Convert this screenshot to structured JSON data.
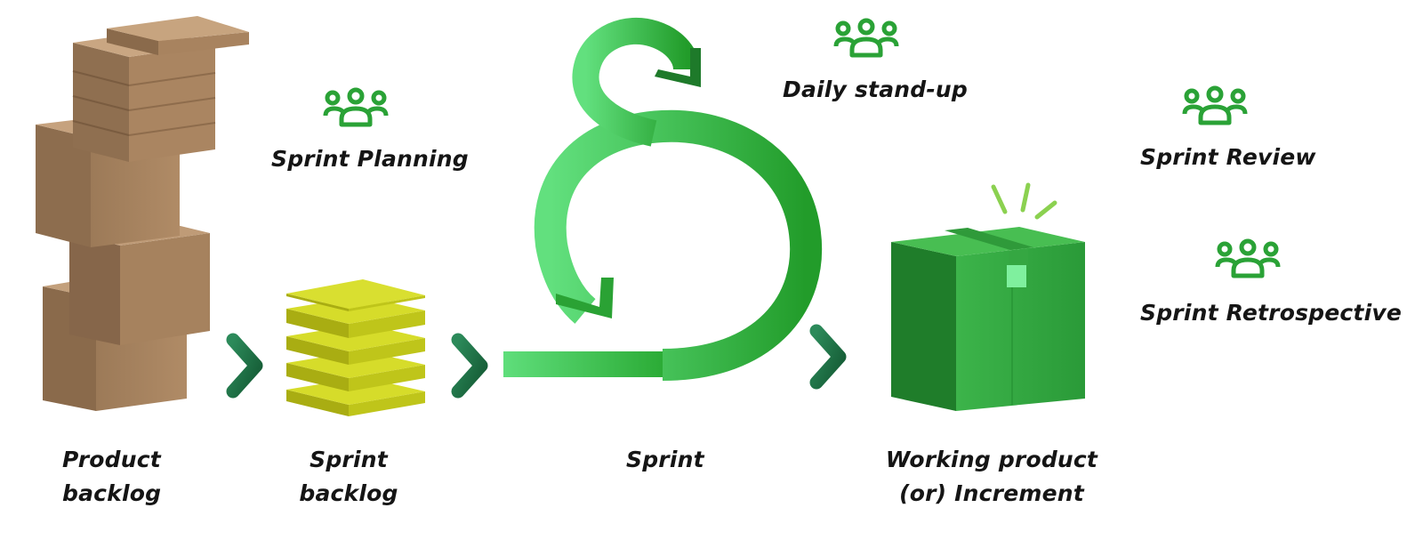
{
  "labels": {
    "product_backlog": [
      "Product",
      "backlog"
    ],
    "sprint_backlog": [
      "Sprint",
      "backlog"
    ],
    "sprint": "Sprint",
    "working_product": [
      "Working product",
      "(or) Increment"
    ],
    "sprint_planning": "Sprint Planning",
    "daily_standup": "Daily stand-up",
    "sprint_review": "Sprint Review",
    "sprint_retrospective": "Sprint Retrospective"
  },
  "icons": {
    "people": "team-icon",
    "arrow": "chevron-right-icon",
    "loop": "sprint-loop-arrow"
  },
  "colors": {
    "green": "#2fb12f",
    "dark_green": "#1e6b45",
    "cardboard": "#a98360",
    "sprint_backlog": "#c9cf1e"
  }
}
